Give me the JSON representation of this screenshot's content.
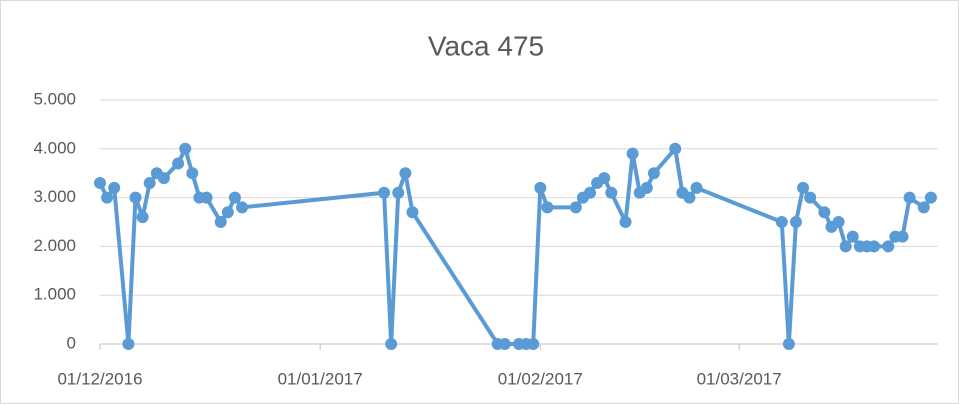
{
  "chart_data": {
    "type": "line",
    "title": "Vaca 475",
    "x": [
      "01/12/2016",
      "02/12/2016",
      "03/12/2016",
      "05/12/2016",
      "06/12/2016",
      "07/12/2016",
      "08/12/2016",
      "09/12/2016",
      "10/12/2016",
      "12/12/2016",
      "13/12/2016",
      "14/12/2016",
      "15/12/2016",
      "16/12/2016",
      "18/12/2016",
      "19/12/2016",
      "20/12/2016",
      "21/12/2016",
      "10/01/2017",
      "11/01/2017",
      "12/01/2017",
      "13/01/2017",
      "14/01/2017",
      "26/01/2017",
      "27/01/2017",
      "29/01/2017",
      "30/01/2017",
      "31/01/2017",
      "01/02/2017",
      "02/02/2017",
      "06/02/2017",
      "07/02/2017",
      "08/02/2017",
      "09/02/2017",
      "10/02/2017",
      "11/02/2017",
      "13/02/2017",
      "14/02/2017",
      "15/02/2017",
      "16/02/2017",
      "17/02/2017",
      "20/02/2017",
      "21/02/2017",
      "22/02/2017",
      "23/02/2017",
      "07/03/2017",
      "08/03/2017",
      "09/03/2017",
      "10/03/2017",
      "11/03/2017",
      "13/03/2017",
      "14/03/2017",
      "15/03/2017",
      "16/03/2017",
      "17/03/2017",
      "18/03/2017",
      "19/03/2017",
      "20/03/2017",
      "22/03/2017",
      "23/03/2017",
      "24/03/2017",
      "25/03/2017",
      "27/03/2017",
      "28/03/2017"
    ],
    "series": [
      {
        "name": "Vaca 475",
        "color": "#5b9bd5",
        "values": [
          3300,
          3000,
          3200,
          0,
          3000,
          2600,
          3300,
          3500,
          3400,
          3700,
          4000,
          3500,
          3000,
          3000,
          2500,
          2700,
          3000,
          2800,
          3100,
          0,
          3100,
          3500,
          2700,
          0,
          0,
          0,
          0,
          0,
          3200,
          2800,
          2800,
          3000,
          3100,
          3300,
          3400,
          3100,
          2500,
          3900,
          3100,
          3200,
          3500,
          4000,
          3100,
          3000,
          3200,
          2500,
          0,
          2500,
          3200,
          3000,
          2700,
          2400,
          2500,
          2000,
          2200,
          2000,
          2000,
          2000,
          2000,
          2200,
          2200,
          3000,
          2800,
          3000
        ]
      }
    ],
    "xlim": [
      "01/12/2016",
      "29/03/2017"
    ],
    "xticks": [
      "01/12/2016",
      "01/01/2017",
      "01/02/2017",
      "01/03/2017"
    ],
    "ylim": [
      0,
      5000
    ],
    "yticks": [
      0,
      {
        "value": 1000,
        "label": "1.000"
      },
      {
        "value": 2000,
        "label": "2.000"
      },
      {
        "value": 3000,
        "label": "3.000"
      },
      {
        "value": 4000,
        "label": "4.000"
      },
      {
        "value": 5000,
        "label": "5.000"
      }
    ],
    "grid": true
  }
}
